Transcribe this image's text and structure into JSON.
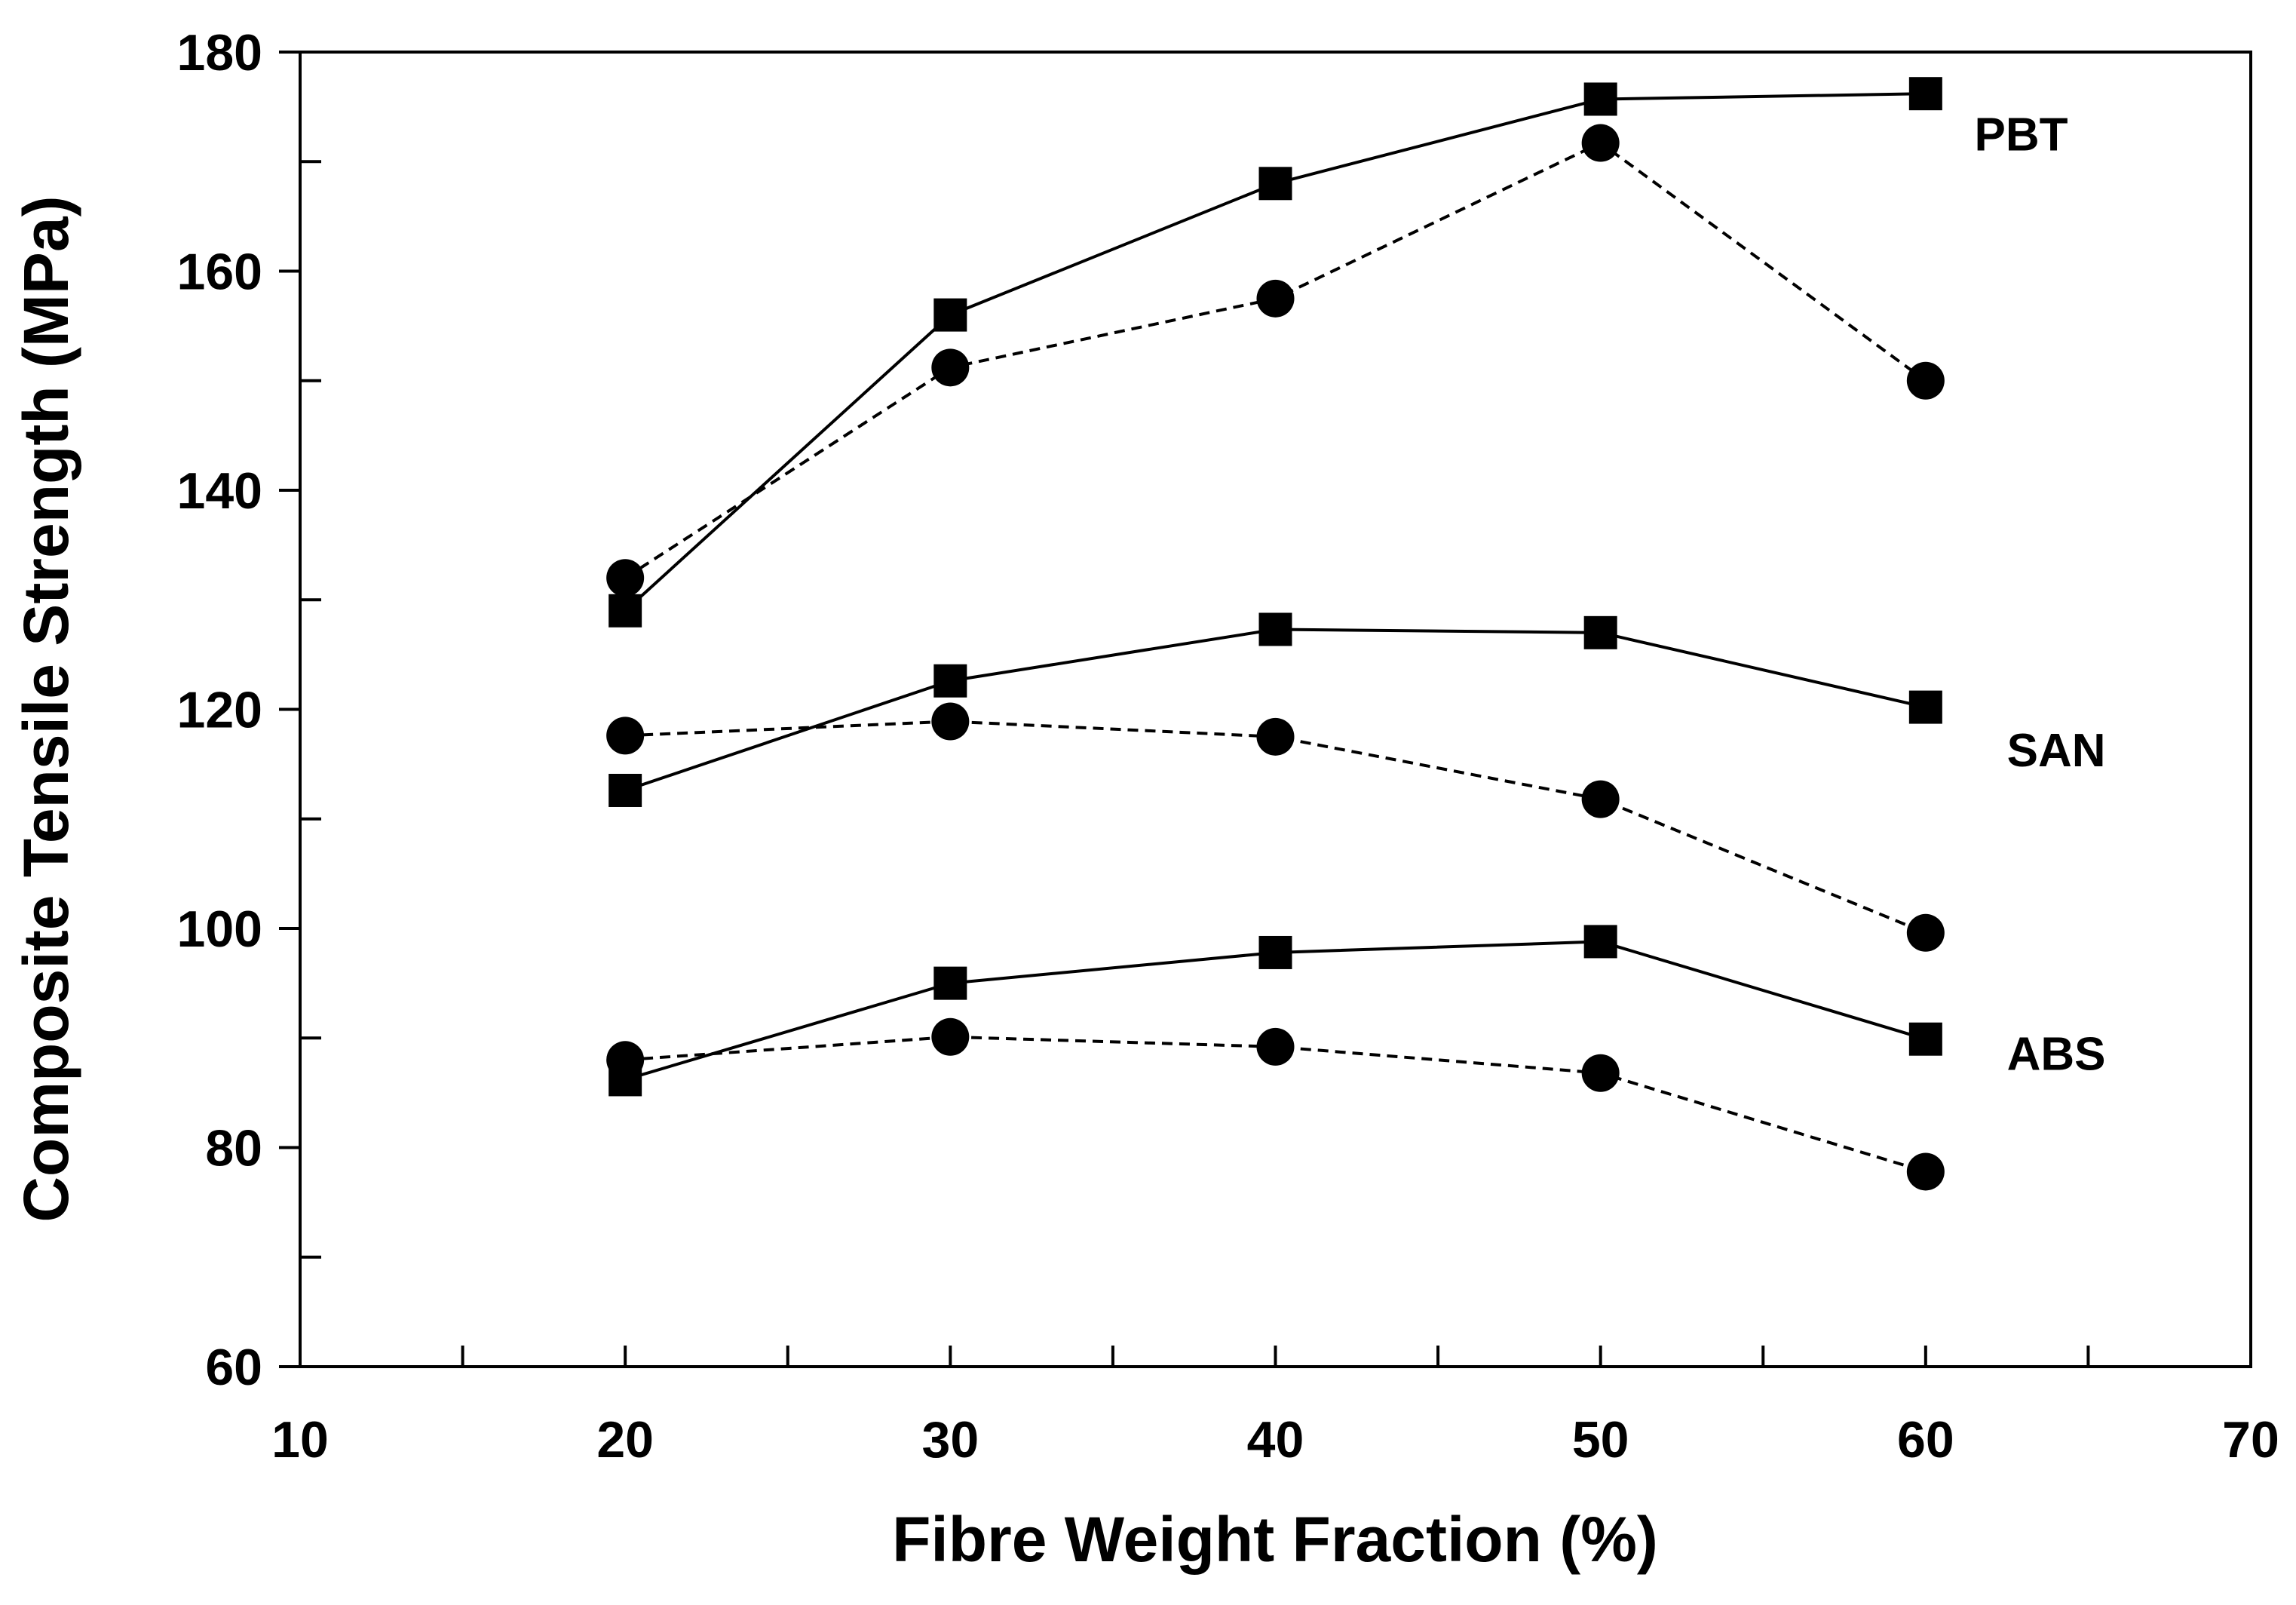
{
  "chart_data": {
    "type": "line",
    "title": "",
    "xlabel": "Fibre Weight Fraction (%)",
    "ylabel": "Composite Tensile Strength (MPa)",
    "xlim": [
      10,
      70
    ],
    "ylim": [
      60,
      180
    ],
    "x_major_ticks": [
      10,
      20,
      30,
      40,
      50,
      60,
      70
    ],
    "x_minor_ticks": [
      15,
      25,
      35,
      45,
      55,
      65
    ],
    "y_major_ticks": [
      60,
      80,
      100,
      120,
      140,
      160,
      180
    ],
    "y_minor_ticks": [
      70,
      90,
      110,
      130,
      150,
      170
    ],
    "grid": false,
    "legend": "none",
    "x": [
      20,
      30,
      40,
      50,
      60
    ],
    "series": [
      {
        "name": "PBT solid (square markers)",
        "group": "PBT",
        "marker": "square",
        "line": "solid",
        "values": [
          129,
          156,
          168,
          175.7,
          176.2
        ]
      },
      {
        "name": "PBT dashed (circle markers)",
        "group": "PBT",
        "marker": "circle",
        "line": "dashed",
        "values": [
          132,
          151.2,
          157.5,
          171.7,
          150
        ]
      },
      {
        "name": "SAN solid (square markers)",
        "group": "SAN",
        "marker": "square",
        "line": "solid",
        "values": [
          112.6,
          122.6,
          127.3,
          127,
          120.2
        ]
      },
      {
        "name": "SAN dashed (circle markers)",
        "group": "SAN",
        "marker": "circle",
        "line": "dashed",
        "values": [
          117.6,
          118.9,
          117.5,
          111.8,
          99.6
        ]
      },
      {
        "name": "ABS solid (square markers)",
        "group": "ABS",
        "marker": "square",
        "line": "solid",
        "values": [
          86.2,
          95,
          97.8,
          98.8,
          89.9
        ]
      },
      {
        "name": "ABS dashed (circle markers)",
        "group": "ABS",
        "marker": "circle",
        "line": "dashed",
        "values": [
          88,
          90.1,
          89.2,
          86.8,
          77.8
        ]
      }
    ],
    "annotations": [
      {
        "text": "PBT",
        "x": 61.5,
        "y": 171
      },
      {
        "text": "SAN",
        "x": 62.5,
        "y": 114.8
      },
      {
        "text": "ABS",
        "x": 62.5,
        "y": 87.1
      }
    ],
    "colors": {
      "ink": "#000000",
      "background": "#ffffff"
    }
  }
}
